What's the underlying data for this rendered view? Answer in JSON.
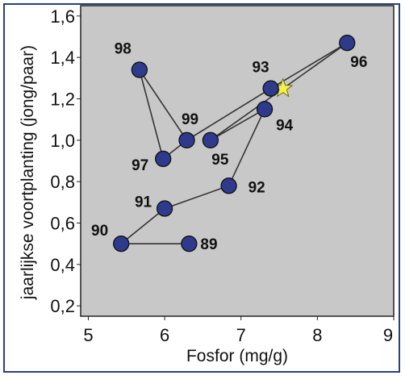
{
  "chart_data": {
    "type": "line",
    "title": "",
    "xlabel": "Fosfor (mg/g)",
    "ylabel": "jaarlijkse voortplanting (jong/paar)",
    "xlim": [
      4.9,
      9.0
    ],
    "ylim": [
      0.15,
      1.65
    ],
    "xticks": [
      5,
      6,
      7,
      8,
      9
    ],
    "yticks": [
      0.2,
      0.4,
      0.6,
      0.8,
      1.0,
      1.2,
      1.4,
      1.6
    ],
    "xtick_labels": [
      "5",
      "6",
      "7",
      "8",
      "9"
    ],
    "ytick_labels": [
      "0,2",
      "0,4",
      "0,6",
      "0,8",
      "1,0",
      "1,2",
      "1,4",
      "1,6"
    ],
    "plot_background": "#c8c8c8",
    "marker_color": "#2e3a8c",
    "line_color": "#333333",
    "star_color": "#f3f04a",
    "points": [
      {
        "label": "89",
        "x": 6.32,
        "y": 0.5
      },
      {
        "label": "90",
        "x": 5.43,
        "y": 0.5
      },
      {
        "label": "91",
        "x": 6.0,
        "y": 0.67
      },
      {
        "label": "92",
        "x": 6.84,
        "y": 0.78
      },
      {
        "label": "93",
        "x": 7.39,
        "y": 1.25
      },
      {
        "label": "94",
        "x": 7.31,
        "y": 1.15
      },
      {
        "label": "95",
        "x": 6.6,
        "y": 1.0
      },
      {
        "label": "96",
        "x": 8.39,
        "y": 1.47
      },
      {
        "label": "97",
        "x": 5.98,
        "y": 0.91
      },
      {
        "label": "98",
        "x": 5.67,
        "y": 1.34
      },
      {
        "label": "99",
        "x": 6.29,
        "y": 1.0
      }
    ],
    "star": {
      "x": 7.55,
      "y": 1.25
    }
  }
}
